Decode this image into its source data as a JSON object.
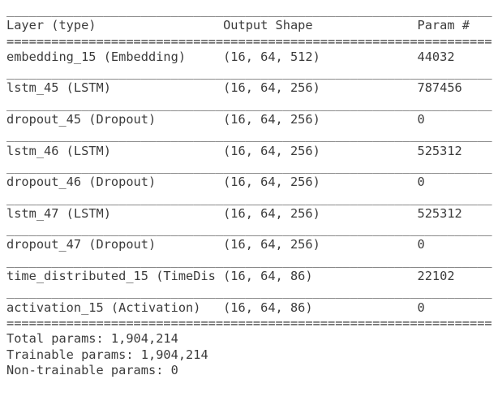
{
  "table": {
    "headers": {
      "layer": "Layer (type)",
      "shape": "Output Shape",
      "param": "Param #"
    },
    "rows": [
      {
        "layer": "embedding_15 (Embedding)",
        "shape": "(16, 64, 512)",
        "param": "44032"
      },
      {
        "layer": "lstm_45 (LSTM)",
        "shape": "(16, 64, 256)",
        "param": "787456"
      },
      {
        "layer": "dropout_45 (Dropout)",
        "shape": "(16, 64, 256)",
        "param": "0"
      },
      {
        "layer": "lstm_46 (LSTM)",
        "shape": "(16, 64, 256)",
        "param": "525312"
      },
      {
        "layer": "dropout_46 (Dropout)",
        "shape": "(16, 64, 256)",
        "param": "0"
      },
      {
        "layer": "lstm_47 (LSTM)",
        "shape": "(16, 64, 256)",
        "param": "525312"
      },
      {
        "layer": "dropout_47 (Dropout)",
        "shape": "(16, 64, 256)",
        "param": "0"
      },
      {
        "layer": "time_distributed_15 (TimeDis",
        "shape": "(16, 64, 86)",
        "param": "22102"
      },
      {
        "layer": "activation_15 (Activation)",
        "shape": "(16, 64, 86)",
        "param": "0"
      }
    ],
    "summary": {
      "total": "Total params: 1,904,214",
      "trainable": "Trainable params: 1,904,214",
      "non_trainable": "Non-trainable params: 0"
    }
  },
  "separators": {
    "underscore": "_________________________________________________________________",
    "equals": "================================================================="
  },
  "colors": {
    "text": "#3b3b3b",
    "background": "#ffffff"
  }
}
